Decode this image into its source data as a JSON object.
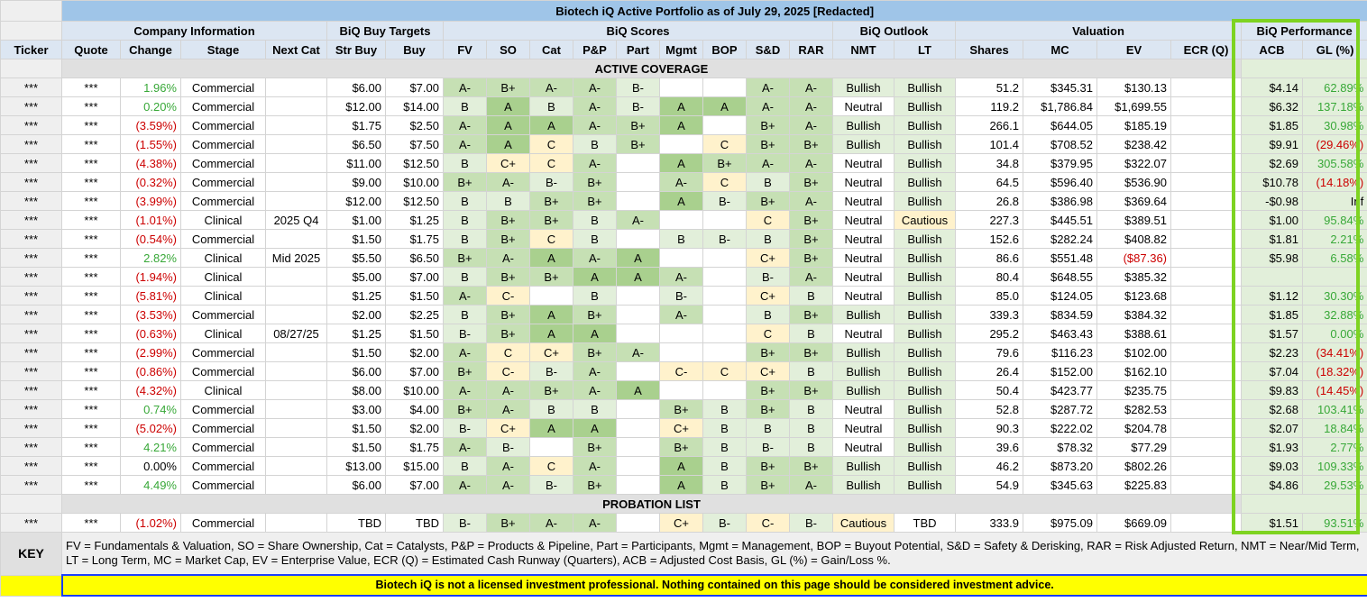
{
  "title": "Biotech iQ Active Portfolio as of July 29, 2025 [Redacted]",
  "groups": {
    "company": "Company Information",
    "targets": "BiQ Buy Targets",
    "scores": "BiQ Scores",
    "outlook": "BiQ Outlook",
    "valuation": "Valuation",
    "performance": "BiQ Performance"
  },
  "columns": [
    "Ticker",
    "Quote",
    "Change",
    "Stage",
    "Next Cat",
    "Str Buy",
    "Buy",
    "FV",
    "SO",
    "Cat",
    "P&P",
    "Part",
    "Mgmt",
    "BOP",
    "S&D",
    "RAR",
    "NMT",
    "LT",
    "Shares",
    "MC",
    "EV",
    "ECR (Q)",
    "ACB",
    "GL (%)"
  ],
  "sections": {
    "active": "ACTIVE COVERAGE",
    "probation": "PROBATION LIST"
  },
  "active_rows": [
    {
      "ticker": "***",
      "quote": "***",
      "change": "1.96%",
      "change_dir": "pos",
      "stage": "Commercial",
      "next_cat": "",
      "str_buy": "$6.00",
      "buy": "$7.00",
      "fv": "A-",
      "so": "B+",
      "cat": "A-",
      "pp": "A-",
      "part": "B-",
      "mgmt": "",
      "bop": "",
      "sd": "A-",
      "rar": "A-",
      "nmt": "Bullish",
      "lt": "Bullish",
      "shares": "51.2",
      "mc": "$345.31",
      "ev": "$130.13",
      "ev_dir": "neu",
      "ecr": "",
      "acb": "$4.14",
      "gl": "62.89%",
      "gl_dir": "pos"
    },
    {
      "ticker": "***",
      "quote": "***",
      "change": "0.20%",
      "change_dir": "pos",
      "stage": "Commercial",
      "next_cat": "",
      "str_buy": "$12.00",
      "buy": "$14.00",
      "fv": "B",
      "so": "A",
      "cat": "B",
      "pp": "A-",
      "part": "B-",
      "mgmt": "A",
      "bop": "A",
      "sd": "A-",
      "rar": "A-",
      "nmt": "Neutral",
      "lt": "Bullish",
      "shares": "119.2",
      "mc": "$1,786.84",
      "ev": "$1,699.55",
      "ev_dir": "neu",
      "ecr": "",
      "acb": "$6.32",
      "gl": "137.18%",
      "gl_dir": "pos"
    },
    {
      "ticker": "***",
      "quote": "***",
      "change": "(3.59%)",
      "change_dir": "neg",
      "stage": "Commercial",
      "next_cat": "",
      "str_buy": "$1.75",
      "buy": "$2.50",
      "fv": "A-",
      "so": "A",
      "cat": "A",
      "pp": "A-",
      "part": "B+",
      "mgmt": "A",
      "bop": "",
      "sd": "B+",
      "rar": "A-",
      "nmt": "Bullish",
      "lt": "Bullish",
      "shares": "266.1",
      "mc": "$644.05",
      "ev": "$185.19",
      "ev_dir": "neu",
      "ecr": "",
      "acb": "$1.85",
      "gl": "30.98%",
      "gl_dir": "pos"
    },
    {
      "ticker": "***",
      "quote": "***",
      "change": "(1.55%)",
      "change_dir": "neg",
      "stage": "Commercial",
      "next_cat": "",
      "str_buy": "$6.50",
      "buy": "$7.50",
      "fv": "A-",
      "so": "A",
      "cat": "C",
      "pp": "B",
      "part": "B+",
      "mgmt": "",
      "bop": "C",
      "sd": "B+",
      "rar": "B+",
      "nmt": "Bullish",
      "lt": "Bullish",
      "shares": "101.4",
      "mc": "$708.52",
      "ev": "$238.42",
      "ev_dir": "neu",
      "ecr": "",
      "acb": "$9.91",
      "gl": "(29.46%)",
      "gl_dir": "neg"
    },
    {
      "ticker": "***",
      "quote": "***",
      "change": "(4.38%)",
      "change_dir": "neg",
      "stage": "Commercial",
      "next_cat": "",
      "str_buy": "$11.00",
      "buy": "$12.50",
      "fv": "B",
      "so": "C+",
      "cat": "C",
      "pp": "A-",
      "part": "",
      "mgmt": "A",
      "bop": "B+",
      "sd": "A-",
      "rar": "A-",
      "nmt": "Neutral",
      "lt": "Bullish",
      "shares": "34.8",
      "mc": "$379.95",
      "ev": "$322.07",
      "ev_dir": "neu",
      "ecr": "",
      "acb": "$2.69",
      "gl": "305.58%",
      "gl_dir": "pos"
    },
    {
      "ticker": "***",
      "quote": "***",
      "change": "(0.32%)",
      "change_dir": "neg",
      "stage": "Commercial",
      "next_cat": "",
      "str_buy": "$9.00",
      "buy": "$10.00",
      "fv": "B+",
      "so": "A-",
      "cat": "B-",
      "pp": "B+",
      "part": "",
      "mgmt": "A-",
      "bop": "C",
      "sd": "B",
      "rar": "B+",
      "nmt": "Neutral",
      "lt": "Bullish",
      "shares": "64.5",
      "mc": "$596.40",
      "ev": "$536.90",
      "ev_dir": "neu",
      "ecr": "",
      "acb": "$10.78",
      "gl": "(14.18%)",
      "gl_dir": "neg"
    },
    {
      "ticker": "***",
      "quote": "***",
      "change": "(3.99%)",
      "change_dir": "neg",
      "stage": "Commercial",
      "next_cat": "",
      "str_buy": "$12.00",
      "buy": "$12.50",
      "fv": "B",
      "so": "B",
      "cat": "B+",
      "pp": "B+",
      "part": "",
      "mgmt": "A",
      "bop": "B-",
      "sd": "B+",
      "rar": "A-",
      "nmt": "Neutral",
      "lt": "Bullish",
      "shares": "26.8",
      "mc": "$386.98",
      "ev": "$369.64",
      "ev_dir": "neu",
      "ecr": "",
      "acb": "-$0.98",
      "gl": "Inf",
      "gl_dir": "neu"
    },
    {
      "ticker": "***",
      "quote": "***",
      "change": "(1.01%)",
      "change_dir": "neg",
      "stage": "Clinical",
      "next_cat": "2025 Q4",
      "str_buy": "$1.00",
      "buy": "$1.25",
      "fv": "B",
      "so": "B+",
      "cat": "B+",
      "pp": "B",
      "part": "A-",
      "mgmt": "",
      "bop": "",
      "sd": "C",
      "rar": "B+",
      "nmt": "Neutral",
      "lt": "Cautious",
      "shares": "227.3",
      "mc": "$445.51",
      "ev": "$389.51",
      "ev_dir": "neu",
      "ecr": "",
      "acb": "$1.00",
      "gl": "95.84%",
      "gl_dir": "pos"
    },
    {
      "ticker": "***",
      "quote": "***",
      "change": "(0.54%)",
      "change_dir": "neg",
      "stage": "Commercial",
      "next_cat": "",
      "str_buy": "$1.50",
      "buy": "$1.75",
      "fv": "B",
      "so": "B+",
      "cat": "C",
      "pp": "B",
      "part": "",
      "mgmt": "B",
      "bop": "B-",
      "sd": "B",
      "rar": "B+",
      "nmt": "Neutral",
      "lt": "Bullish",
      "shares": "152.6",
      "mc": "$282.24",
      "ev": "$408.82",
      "ev_dir": "neu",
      "ecr": "",
      "acb": "$1.81",
      "gl": "2.21%",
      "gl_dir": "pos"
    },
    {
      "ticker": "***",
      "quote": "***",
      "change": "2.82%",
      "change_dir": "pos",
      "stage": "Clinical",
      "next_cat": "Mid 2025",
      "str_buy": "$5.50",
      "buy": "$6.50",
      "fv": "B+",
      "so": "A-",
      "cat": "A",
      "pp": "A-",
      "part": "A",
      "mgmt": "",
      "bop": "",
      "sd": "C+",
      "rar": "B+",
      "nmt": "Neutral",
      "lt": "Bullish",
      "shares": "86.6",
      "mc": "$551.48",
      "ev": "($87.36)",
      "ev_dir": "neg",
      "ecr": "",
      "acb": "$5.98",
      "gl": "6.58%",
      "gl_dir": "pos"
    },
    {
      "ticker": "***",
      "quote": "***",
      "change": "(1.94%)",
      "change_dir": "neg",
      "stage": "Clinical",
      "next_cat": "",
      "str_buy": "$5.00",
      "buy": "$7.00",
      "fv": "B",
      "so": "B+",
      "cat": "B+",
      "pp": "A",
      "part": "A",
      "mgmt": "A-",
      "bop": "",
      "sd": "B-",
      "rar": "A-",
      "nmt": "Neutral",
      "lt": "Bullish",
      "shares": "80.4",
      "mc": "$648.55",
      "ev": "$385.32",
      "ev_dir": "neu",
      "ecr": "",
      "acb": "",
      "gl": "",
      "gl_dir": "neu"
    },
    {
      "ticker": "***",
      "quote": "***",
      "change": "(5.81%)",
      "change_dir": "neg",
      "stage": "Clinical",
      "next_cat": "",
      "str_buy": "$1.25",
      "buy": "$1.50",
      "fv": "A-",
      "so": "C-",
      "cat": "",
      "pp": "B",
      "part": "",
      "mgmt": "B-",
      "bop": "",
      "sd": "C+",
      "rar": "B",
      "nmt": "Neutral",
      "lt": "Bullish",
      "shares": "85.0",
      "mc": "$124.05",
      "ev": "$123.68",
      "ev_dir": "neu",
      "ecr": "",
      "acb": "$1.12",
      "gl": "30.30%",
      "gl_dir": "pos"
    },
    {
      "ticker": "***",
      "quote": "***",
      "change": "(3.53%)",
      "change_dir": "neg",
      "stage": "Commercial",
      "next_cat": "",
      "str_buy": "$2.00",
      "buy": "$2.25",
      "fv": "B",
      "so": "B+",
      "cat": "A",
      "pp": "B+",
      "part": "",
      "mgmt": "A-",
      "bop": "",
      "sd": "B",
      "rar": "B+",
      "nmt": "Bullish",
      "lt": "Bullish",
      "shares": "339.3",
      "mc": "$834.59",
      "ev": "$384.32",
      "ev_dir": "neu",
      "ecr": "",
      "acb": "$1.85",
      "gl": "32.88%",
      "gl_dir": "pos"
    },
    {
      "ticker": "***",
      "quote": "***",
      "change": "(0.63%)",
      "change_dir": "neg",
      "stage": "Clinical",
      "next_cat": "08/27/25",
      "str_buy": "$1.25",
      "buy": "$1.50",
      "fv": "B-",
      "so": "B+",
      "cat": "A",
      "pp": "A",
      "part": "",
      "mgmt": "",
      "bop": "",
      "sd": "C",
      "rar": "B",
      "nmt": "Neutral",
      "lt": "Bullish",
      "shares": "295.2",
      "mc": "$463.43",
      "ev": "$388.61",
      "ev_dir": "neu",
      "ecr": "",
      "acb": "$1.57",
      "gl": "0.00%",
      "gl_dir": "pos"
    },
    {
      "ticker": "***",
      "quote": "***",
      "change": "(2.99%)",
      "change_dir": "neg",
      "stage": "Commercial",
      "next_cat": "",
      "str_buy": "$1.50",
      "buy": "$2.00",
      "fv": "A-",
      "so": "C",
      "cat": "C+",
      "pp": "B+",
      "part": "A-",
      "mgmt": "",
      "bop": "",
      "sd": "B+",
      "rar": "B+",
      "nmt": "Bullish",
      "lt": "Bullish",
      "shares": "79.6",
      "mc": "$116.23",
      "ev": "$102.00",
      "ev_dir": "neu",
      "ecr": "",
      "acb": "$2.23",
      "gl": "(34.41%)",
      "gl_dir": "neg"
    },
    {
      "ticker": "***",
      "quote": "***",
      "change": "(0.86%)",
      "change_dir": "neg",
      "stage": "Commercial",
      "next_cat": "",
      "str_buy": "$6.00",
      "buy": "$7.00",
      "fv": "B+",
      "so": "C-",
      "cat": "B-",
      "pp": "A-",
      "part": "",
      "mgmt": "C-",
      "bop": "C",
      "sd": "C+",
      "rar": "B",
      "nmt": "Bullish",
      "lt": "Bullish",
      "shares": "26.4",
      "mc": "$152.00",
      "ev": "$162.10",
      "ev_dir": "neu",
      "ecr": "",
      "acb": "$7.04",
      "gl": "(18.32%)",
      "gl_dir": "neg"
    },
    {
      "ticker": "***",
      "quote": "***",
      "change": "(4.32%)",
      "change_dir": "neg",
      "stage": "Clinical",
      "next_cat": "",
      "str_buy": "$8.00",
      "buy": "$10.00",
      "fv": "A-",
      "so": "A-",
      "cat": "B+",
      "pp": "A-",
      "part": "A",
      "mgmt": "",
      "bop": "",
      "sd": "B+",
      "rar": "B+",
      "nmt": "Bullish",
      "lt": "Bullish",
      "shares": "50.4",
      "mc": "$423.77",
      "ev": "$235.75",
      "ev_dir": "neu",
      "ecr": "",
      "acb": "$9.83",
      "gl": "(14.45%)",
      "gl_dir": "neg"
    },
    {
      "ticker": "***",
      "quote": "***",
      "change": "0.74%",
      "change_dir": "pos",
      "stage": "Commercial",
      "next_cat": "",
      "str_buy": "$3.00",
      "buy": "$4.00",
      "fv": "B+",
      "so": "A-",
      "cat": "B",
      "pp": "B",
      "part": "",
      "mgmt": "B+",
      "bop": "B",
      "sd": "B+",
      "rar": "B",
      "nmt": "Neutral",
      "lt": "Bullish",
      "shares": "52.8",
      "mc": "$287.72",
      "ev": "$282.53",
      "ev_dir": "neu",
      "ecr": "",
      "acb": "$2.68",
      "gl": "103.41%",
      "gl_dir": "pos"
    },
    {
      "ticker": "***",
      "quote": "***",
      "change": "(5.02%)",
      "change_dir": "neg",
      "stage": "Commercial",
      "next_cat": "",
      "str_buy": "$1.50",
      "buy": "$2.00",
      "fv": "B-",
      "so": "C+",
      "cat": "A",
      "pp": "A",
      "part": "",
      "mgmt": "C+",
      "bop": "B",
      "sd": "B",
      "rar": "B",
      "nmt": "Neutral",
      "lt": "Bullish",
      "shares": "90.3",
      "mc": "$222.02",
      "ev": "$204.78",
      "ev_dir": "neu",
      "ecr": "",
      "acb": "$2.07",
      "gl": "18.84%",
      "gl_dir": "pos"
    },
    {
      "ticker": "***",
      "quote": "***",
      "change": "4.21%",
      "change_dir": "pos",
      "stage": "Commercial",
      "next_cat": "",
      "str_buy": "$1.50",
      "buy": "$1.75",
      "fv": "A-",
      "so": "B-",
      "cat": "",
      "pp": "B+",
      "part": "",
      "mgmt": "B+",
      "bop": "B",
      "sd": "B-",
      "rar": "B",
      "nmt": "Neutral",
      "lt": "Bullish",
      "shares": "39.6",
      "mc": "$78.32",
      "ev": "$77.29",
      "ev_dir": "neu",
      "ecr": "",
      "acb": "$1.93",
      "gl": "2.77%",
      "gl_dir": "pos"
    },
    {
      "ticker": "***",
      "quote": "***",
      "change": "0.00%",
      "change_dir": "neu",
      "stage": "Commercial",
      "next_cat": "",
      "str_buy": "$13.00",
      "buy": "$15.00",
      "fv": "B",
      "so": "A-",
      "cat": "C",
      "pp": "A-",
      "part": "",
      "mgmt": "A",
      "bop": "B",
      "sd": "B+",
      "rar": "B+",
      "nmt": "Bullish",
      "lt": "Bullish",
      "shares": "46.2",
      "mc": "$873.20",
      "ev": "$802.26",
      "ev_dir": "neu",
      "ecr": "",
      "acb": "$9.03",
      "gl": "109.33%",
      "gl_dir": "pos"
    },
    {
      "ticker": "***",
      "quote": "***",
      "change": "4.49%",
      "change_dir": "pos",
      "stage": "Commercial",
      "next_cat": "",
      "str_buy": "$6.00",
      "buy": "$7.00",
      "fv": "A-",
      "so": "A-",
      "cat": "B-",
      "pp": "B+",
      "part": "",
      "mgmt": "A",
      "bop": "B",
      "sd": "B+",
      "rar": "A-",
      "nmt": "Bullish",
      "lt": "Bullish",
      "shares": "54.9",
      "mc": "$345.63",
      "ev": "$225.83",
      "ev_dir": "neu",
      "ecr": "",
      "acb": "$4.86",
      "gl": "29.53%",
      "gl_dir": "pos"
    }
  ],
  "probation_rows": [
    {
      "ticker": "***",
      "quote": "***",
      "change": "(1.02%)",
      "change_dir": "neg",
      "stage": "Commercial",
      "next_cat": "",
      "str_buy": "TBD",
      "buy": "TBD",
      "fv": "B-",
      "so": "B+",
      "cat": "A-",
      "pp": "A-",
      "part": "",
      "mgmt": "C+",
      "bop": "B-",
      "sd": "C-",
      "rar": "B-",
      "nmt": "Cautious",
      "lt": "TBD",
      "shares": "333.9",
      "mc": "$975.09",
      "ev": "$669.09",
      "ev_dir": "neu",
      "ecr": "",
      "acb": "$1.51",
      "gl": "93.51%",
      "gl_dir": "pos"
    }
  ],
  "key": {
    "label": "KEY",
    "text": "FV = Fundamentals & Valuation, SO = Share Ownership, Cat = Catalysts, P&P = Products & Pipeline, Part = Participants, Mgmt = Management, BOP = Buyout Potential, S&D = Safety & Derisking, RAR = Risk Adjusted Return, NMT = Near/Mid Term, LT = Long Term, MC = Market Cap, EV = Enterprise Value, ECR (Q) = Estimated Cash Runway (Quarters), ACB = Adjusted Cost Basis, GL (%) = Gain/Loss %."
  },
  "disclaimer": "Biotech iQ is not a licensed investment professional. Nothing contained on this page should be considered investment advice.",
  "colors": {
    "title_bg": "#9fc5e8",
    "header_bg": "#dce6f2",
    "grade_dark": "#a9d08e",
    "grade_mid": "#c6e0b4",
    "grade_light": "#e2efda",
    "grade_weak": "#fff2cc",
    "gain": "#38a838",
    "loss": "#cc0000",
    "highlight": "#7ed321",
    "disclaimer_bg": "#ffff00"
  }
}
